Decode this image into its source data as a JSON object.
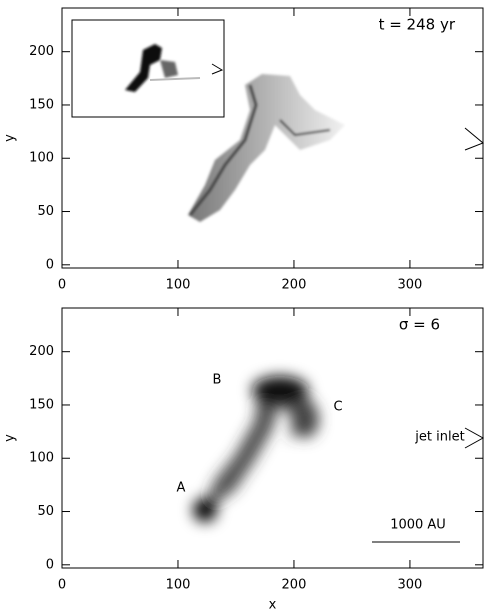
{
  "chart_data": [
    {
      "type": "image",
      "ylabel": "y",
      "xlim": [
        0,
        363
      ],
      "ylim": [
        -3,
        241
      ],
      "xticks": [
        0,
        100,
        200,
        300
      ],
      "yticks": [
        0,
        50,
        100,
        150,
        200
      ],
      "annotations": [
        "t = 248 yr"
      ]
    },
    {
      "type": "image",
      "xlabel": "x",
      "ylabel": "y",
      "xlim": [
        0,
        363
      ],
      "ylim": [
        -3,
        241
      ],
      "xticks": [
        0,
        100,
        200,
        300
      ],
      "yticks": [
        0,
        50,
        100,
        150,
        200
      ],
      "annotations": [
        "σ = 6",
        "A",
        "B",
        "C",
        "jet inlet",
        "1000 AU"
      ]
    }
  ]
}
